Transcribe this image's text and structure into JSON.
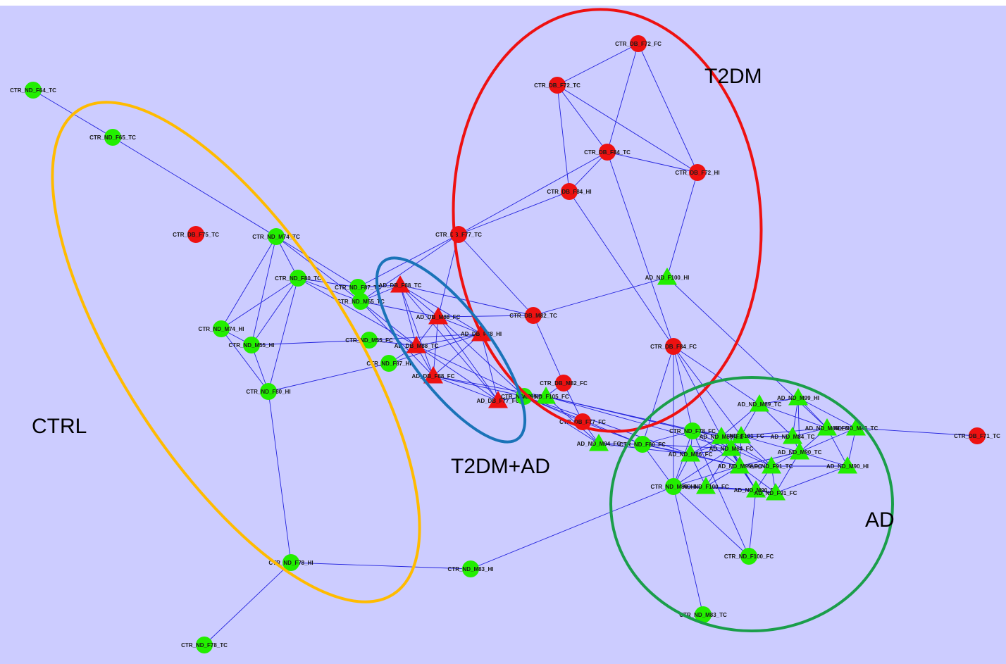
{
  "colors": {
    "background": "#ccccff",
    "edge": "#2222dd",
    "ctrl_node": "#22ee00",
    "t2dm_node": "#ee1111",
    "ctrl_group": "#ffbb00",
    "t2dm_group": "#ee1111",
    "mixed_group": "#1a73b8",
    "ad_group": "#1a9e4a"
  },
  "groups": [
    {
      "id": "ctrl",
      "label": "CTRL"
    },
    {
      "id": "t2dm",
      "label": "T2DM"
    },
    {
      "id": "mixed",
      "label": "T2DM+AD"
    },
    {
      "id": "ad",
      "label": "AD"
    }
  ],
  "nodes": [
    {
      "id": "CTR_ND_F64_TC",
      "label": "CTR_ND_F64_TC",
      "shape": "circle",
      "color": "green"
    },
    {
      "id": "CTR_ND_F65_TC",
      "label": "CTR_ND_F65_TC",
      "shape": "circle",
      "color": "green"
    },
    {
      "id": "CTR_DB_F75_TC",
      "label": "CTR_DB_F75_TC",
      "shape": "circle",
      "color": "red"
    },
    {
      "id": "CTR_ND_M74_TC",
      "label": "CTR_ND_M74_TC",
      "shape": "circle",
      "color": "green"
    },
    {
      "id": "CTR_ND_F80_TC",
      "label": "CTR_ND_F80_TC",
      "shape": "circle",
      "color": "green"
    },
    {
      "id": "CTR_ND_F87_",
      "label": "CTR_ND_F87_TC",
      "shape": "circle",
      "color": "green"
    },
    {
      "id": "CTR_ND_M55_1",
      "label": "CTR_ND_M55_TC",
      "shape": "circle",
      "color": "green"
    },
    {
      "id": "CTR_ND_M74_HI",
      "label": "CTR_ND_M74_HI",
      "shape": "circle",
      "color": "green"
    },
    {
      "id": "CTR_ND_M55_HI",
      "label": "CTR_ND_M55_HI",
      "shape": "circle",
      "color": "green"
    },
    {
      "id": "CTR_ND_M55_FC",
      "label": "CTR_ND_M55_FC",
      "shape": "circle",
      "color": "green"
    },
    {
      "id": "CTR_ND_F87_HI",
      "label": "CTR_ND_F87_HI",
      "shape": "circle",
      "color": "green"
    },
    {
      "id": "CTR_ND_F80_HI",
      "label": "CTR_ND_F80_HI",
      "shape": "circle",
      "color": "green"
    },
    {
      "id": "CTR_ND_F78_HI",
      "label": "CTR_ND_F78_HI",
      "shape": "circle",
      "color": "green"
    },
    {
      "id": "CTR_ND_M83_HI",
      "label": "CTR_ND_M83_HI",
      "shape": "circle",
      "color": "green"
    },
    {
      "id": "CTR_ND_F78_TC",
      "label": "CTR_ND_F78_TC",
      "shape": "circle",
      "color": "green"
    },
    {
      "id": "CTR_DB_F72_FC",
      "label": "CTR_DB_F72_FC",
      "shape": "circle",
      "color": "red"
    },
    {
      "id": "CTR_DB_F72_TC",
      "label": "CTR_DB_F72_TC",
      "shape": "circle",
      "color": "red"
    },
    {
      "id": "CTR_DB_F84_TC",
      "label": "CTR_DB_F84_TC",
      "shape": "circle",
      "color": "red"
    },
    {
      "id": "CTR_DB_F72_HI",
      "label": "CTR_DB_F72_HI",
      "shape": "circle",
      "color": "red"
    },
    {
      "id": "CTR_DB_F84_HI",
      "label": "CTR_DB_F84_HI",
      "shape": "circle",
      "color": "red"
    },
    {
      "id": "CTR_DB_F77_TC",
      "label": "CTR_DB_F77_TC",
      "shape": "circle",
      "color": "red"
    },
    {
      "id": "CTR_DB_M82_TC",
      "label": "CTR_DB_M82_TC",
      "shape": "circle",
      "color": "red"
    },
    {
      "id": "CTR_DB_F84_FC",
      "label": "CTR_DB_F84_FC",
      "shape": "circle",
      "color": "red"
    },
    {
      "id": "CTR_DB_M82_FC",
      "label": "CTR_DB_M82_FC",
      "shape": "circle",
      "color": "red"
    },
    {
      "id": "CTR_DB_F77_FC",
      "label": "CTR_DB_F77_FC",
      "shape": "circle",
      "color": "red"
    },
    {
      "id": "CTR_DB_F71_TC",
      "label": "CTR_DB_F71_TC",
      "shape": "circle",
      "color": "red"
    },
    {
      "id": "AD_ND_F100_HI",
      "label": "AD_ND_F100_HI",
      "shape": "triangle",
      "color": "green"
    },
    {
      "id": "AD_DB_F88_TC",
      "label": "AD_DB_F88_TC",
      "shape": "triangle",
      "color": "red"
    },
    {
      "id": "AD_DB_M88_FC",
      "label": "AD_DB_M88_FC",
      "shape": "triangle",
      "color": "red"
    },
    {
      "id": "AD_DB_F88_HI",
      "label": "AD_DB_F88_HI",
      "shape": "triangle",
      "color": "red"
    },
    {
      "id": "AD_DB_M88_TC",
      "label": "AD_DB_M88_TC",
      "shape": "triangle",
      "color": "red"
    },
    {
      "id": "AD_DB_F88_FC",
      "label": "AD_DB_F88_FC",
      "shape": "triangle",
      "color": "red"
    },
    {
      "id": "AD_DB_F77_FC",
      "label": "AD_DB_F77_FC",
      "shape": "triangle",
      "color": "red"
    },
    {
      "id": "CTR_ND_F89_FC",
      "label": "CTR_ND_F89_FC",
      "shape": "circle",
      "color": "green"
    },
    {
      "id": "AD_ND_F105_FC",
      "label": "AD_ND_F105_FC",
      "shape": "triangle",
      "color": "green"
    },
    {
      "id": "AD_ND_M94_FC",
      "label": "AD_ND_M94_FC",
      "shape": "triangle",
      "color": "green"
    },
    {
      "id": "CTR_ND_F80_FC",
      "label": "CTR_ND_F80_FC",
      "shape": "circle",
      "color": "green"
    },
    {
      "id": "CTR_ND_F78_FC",
      "label": "CTR_ND_F78_FC",
      "shape": "circle",
      "color": "green"
    },
    {
      "id": "AD_ND_M89_TC",
      "label": "AD_ND_M89_TC",
      "shape": "triangle",
      "color": "green"
    },
    {
      "id": "AD_ND_M99_HI",
      "label": "AD_ND_M99_HI",
      "shape": "triangle",
      "color": "green"
    },
    {
      "id": "AD_ND_M84_TC",
      "label": "AD_ND_M84_TC",
      "shape": "triangle",
      "color": "green"
    },
    {
      "id": "AD_ND_M83_FC",
      "label": "AD_ND_M83_FC",
      "shape": "triangle",
      "color": "green"
    },
    {
      "id": "AD_ND_M83_TC",
      "label": "AD_ND_M83_TC",
      "shape": "triangle",
      "color": "green"
    },
    {
      "id": "AD_ND_F101_FC",
      "label": "AD_ND_F101_FC",
      "shape": "triangle",
      "color": "green"
    },
    {
      "id": "AD_ND_M89_FC",
      "label": "AD_ND_M89_FC",
      "shape": "triangle",
      "color": "green"
    },
    {
      "id": "AD_ND_M86_FC",
      "label": "AD_ND_M86_FC",
      "shape": "triangle",
      "color": "green"
    },
    {
      "id": "AD_ND_M84_FC",
      "label": "AD_ND_M84_FC",
      "shape": "triangle",
      "color": "green"
    },
    {
      "id": "AD_ND_M90_TC",
      "label": "AD_ND_M90_TC",
      "shape": "triangle",
      "color": "green"
    },
    {
      "id": "AD_ND_M99_FC",
      "label": "AD_ND_M99_FC",
      "shape": "triangle",
      "color": "green"
    },
    {
      "id": "AD_ND_F91_TC",
      "label": "AD_ND_F91_TC",
      "shape": "triangle",
      "color": "green"
    },
    {
      "id": "AD_ND_M90_HI",
      "label": "AD_ND_M90_HI",
      "shape": "triangle",
      "color": "green"
    },
    {
      "id": "CTR_ND_M89_HI",
      "label": "CTR_ND_M89_HI",
      "shape": "circle",
      "color": "green"
    },
    {
      "id": "AD_ND_F100_FC",
      "label": "AD_ND_F100_FC",
      "shape": "triangle",
      "color": "green"
    },
    {
      "id": "AD_ND_M90_FC",
      "label": "AD_ND_M90_FC",
      "shape": "triangle",
      "color": "green"
    },
    {
      "id": "AD_ND_F91_FC",
      "label": "AD_ND_F91_FC",
      "shape": "triangle",
      "color": "green"
    },
    {
      "id": "CTR_ND_F100_FC",
      "label": "CTR_ND_F100_FC",
      "shape": "circle",
      "color": "green"
    },
    {
      "id": "CTR_ND_M83_TC",
      "label": "CTR_ND_M83_TC",
      "shape": "circle",
      "color": "green"
    }
  ],
  "edges": [
    [
      "CTR_ND_F64_TC",
      "CTR_ND_F65_TC"
    ],
    [
      "CTR_ND_F65_TC",
      "CTR_ND_M74_TC"
    ],
    [
      "CTR_ND_M74_TC",
      "CTR_ND_F80_TC"
    ],
    [
      "CTR_ND_M74_TC",
      "CTR_ND_M74_HI"
    ],
    [
      "CTR_ND_M74_TC",
      "CTR_ND_M55_1"
    ],
    [
      "CTR_ND_M74_TC",
      "CTR_ND_F87_"
    ],
    [
      "CTR_ND_M74_TC",
      "CTR_ND_M55_HI"
    ],
    [
      "CTR_ND_F80_TC",
      "CTR_ND_M74_HI"
    ],
    [
      "CTR_ND_F80_TC",
      "CTR_ND_F80_HI"
    ],
    [
      "CTR_ND_F80_TC",
      "CTR_ND_F87_"
    ],
    [
      "CTR_ND_F80_TC",
      "CTR_ND_M55_HI"
    ],
    [
      "CTR_ND_F80_TC",
      "CTR_ND_M55_1"
    ],
    [
      "CTR_ND_F80_TC",
      "AD_DB_M88_TC"
    ],
    [
      "CTR_ND_M74_HI",
      "CTR_ND_M55_HI"
    ],
    [
      "CTR_ND_M74_HI",
      "CTR_ND_F80_HI"
    ],
    [
      "CTR_ND_M55_HI",
      "CTR_ND_F80_HI"
    ],
    [
      "CTR_ND_M55_HI",
      "CTR_ND_M55_FC"
    ],
    [
      "CTR_ND_F80_HI",
      "CTR_ND_F87_HI"
    ],
    [
      "CTR_ND_F80_HI",
      "CTR_ND_F78_HI"
    ],
    [
      "CTR_ND_F78_HI",
      "CTR_ND_M83_HI"
    ],
    [
      "CTR_ND_F78_HI",
      "CTR_ND_F78_TC"
    ],
    [
      "CTR_ND_M83_HI",
      "CTR_ND_M89_HI"
    ],
    [
      "CTR_ND_F87_",
      "CTR_ND_M55_1"
    ],
    [
      "CTR_ND_F87_",
      "AD_DB_F88_TC"
    ],
    [
      "CTR_ND_F87_",
      "CTR_DB_F77_TC"
    ],
    [
      "CTR_ND_M55_1",
      "AD_DB_F88_TC"
    ],
    [
      "CTR_ND_M55_1",
      "CTR_DB_F77_TC"
    ],
    [
      "CTR_ND_M55_1",
      "AD_DB_M88_FC"
    ],
    [
      "CTR_ND_M55_1",
      "AD_DB_M88_TC"
    ],
    [
      "CTR_ND_M55_1",
      "AD_DB_F88_FC"
    ],
    [
      "CTR_ND_M55_FC",
      "AD_DB_F88_HI"
    ],
    [
      "CTR_ND_M55_FC",
      "AD_DB_M88_TC"
    ],
    [
      "CTR_ND_F87_HI",
      "AD_DB_F88_HI"
    ],
    [
      "CTR_ND_F87_HI",
      "AD_DB_M88_TC"
    ],
    [
      "CTR_DB_F72_FC",
      "CTR_DB_F72_TC"
    ],
    [
      "CTR_DB_F72_FC",
      "CTR_DB_F84_TC"
    ],
    [
      "CTR_DB_F72_FC",
      "CTR_DB_F72_HI"
    ],
    [
      "CTR_DB_F72_TC",
      "CTR_DB_F84_TC"
    ],
    [
      "CTR_DB_F72_TC",
      "CTR_DB_F84_HI"
    ],
    [
      "CTR_DB_F72_TC",
      "CTR_DB_F72_HI"
    ],
    [
      "CTR_DB_F84_TC",
      "CTR_DB_F72_HI"
    ],
    [
      "CTR_DB_F84_TC",
      "CTR_DB_F84_HI"
    ],
    [
      "CTR_DB_F84_TC",
      "CTR_DB_F77_TC"
    ],
    [
      "CTR_DB_F84_TC",
      "CTR_DB_F84_FC"
    ],
    [
      "CTR_DB_F72_HI",
      "AD_ND_F100_HI"
    ],
    [
      "CTR_DB_F84_HI",
      "CTR_DB_F77_TC"
    ],
    [
      "CTR_DB_F84_HI",
      "CTR_DB_F84_FC"
    ],
    [
      "CTR_DB_F77_TC",
      "CTR_DB_M82_TC"
    ],
    [
      "CTR_DB_F77_TC",
      "AD_DB_M88_FC"
    ],
    [
      "CTR_DB_M82_TC",
      "AD_ND_F100_HI"
    ],
    [
      "CTR_DB_M82_TC",
      "CTR_DB_M82_FC"
    ],
    [
      "CTR_DB_M82_TC",
      "AD_DB_M88_FC"
    ],
    [
      "CTR_DB_M82_TC",
      "AD_DB_F88_TC"
    ],
    [
      "AD_ND_F100_HI",
      "AD_ND_M83_FC"
    ],
    [
      "CTR_DB_F84_FC",
      "CTR_ND_F78_FC"
    ],
    [
      "CTR_DB_F84_FC",
      "CTR_ND_M89_HI"
    ],
    [
      "CTR_DB_F84_FC",
      "AD_ND_M89_FC"
    ],
    [
      "CTR_DB_F84_FC",
      "AD_ND_M89_TC"
    ],
    [
      "CTR_DB_F84_FC",
      "AD_ND_F101_FC"
    ],
    [
      "CTR_DB_M82_FC",
      "CTR_DB_F77_FC"
    ],
    [
      "CTR_DB_M82_FC",
      "AD_ND_F105_FC"
    ],
    [
      "CTR_DB_F77_FC",
      "CTR_ND_F89_FC"
    ],
    [
      "CTR_DB_F77_FC",
      "AD_ND_M94_FC"
    ],
    [
      "CTR_DB_F77_FC",
      "CTR_ND_F80_FC"
    ],
    [
      "AD_DB_F88_TC",
      "AD_DB_M88_FC"
    ],
    [
      "AD_DB_F88_TC",
      "AD_DB_M88_TC"
    ],
    [
      "AD_DB_F88_TC",
      "AD_DB_F88_FC"
    ],
    [
      "AD_DB_F88_TC",
      "AD_DB_F77_FC"
    ],
    [
      "AD_DB_F88_TC",
      "AD_DB_F88_HI"
    ],
    [
      "AD_DB_M88_FC",
      "AD_DB_F88_HI"
    ],
    [
      "AD_DB_M88_FC",
      "AD_DB_M88_TC"
    ],
    [
      "AD_DB_M88_FC",
      "AD_DB_F88_FC"
    ],
    [
      "AD_DB_M88_FC",
      "AD_DB_F77_FC"
    ],
    [
      "AD_DB_M88_FC",
      "CTR_ND_F89_FC"
    ],
    [
      "AD_DB_F88_HI",
      "AD_DB_M88_TC"
    ],
    [
      "AD_DB_F88_HI",
      "AD_DB_F88_FC"
    ],
    [
      "AD_DB_F88_HI",
      "AD_DB_F77_FC"
    ],
    [
      "AD_DB_M88_TC",
      "AD_DB_F88_FC"
    ],
    [
      "AD_DB_M88_TC",
      "AD_DB_F77_FC"
    ],
    [
      "AD_DB_M88_TC",
      "CTR_ND_F89_FC"
    ],
    [
      "AD_DB_F88_FC",
      "AD_DB_F77_FC"
    ],
    [
      "AD_DB_F88_FC",
      "CTR_ND_F89_FC"
    ],
    [
      "AD_DB_F88_FC",
      "AD_ND_F105_FC"
    ],
    [
      "AD_DB_F77_FC",
      "CTR_ND_F89_FC"
    ],
    [
      "CTR_ND_F89_FC",
      "AD_ND_F105_FC"
    ],
    [
      "CTR_ND_F89_FC",
      "AD_ND_M94_FC"
    ],
    [
      "CTR_ND_F89_FC",
      "CTR_ND_F80_FC"
    ],
    [
      "CTR_ND_F89_FC",
      "AD_ND_M86_FC"
    ],
    [
      "AD_ND_F105_FC",
      "AD_ND_M94_FC"
    ],
    [
      "AD_ND_F105_FC",
      "CTR_ND_F78_FC"
    ],
    [
      "AD_ND_F105_FC",
      "AD_ND_M89_FC"
    ],
    [
      "AD_ND_F105_FC",
      "AD_ND_M84_FC"
    ],
    [
      "AD_ND_M94_FC",
      "CTR_ND_F80_FC"
    ],
    [
      "AD_ND_M94_FC",
      "AD_ND_M86_FC"
    ],
    [
      "CTR_ND_F80_FC",
      "CTR_ND_F78_FC"
    ],
    [
      "CTR_ND_F80_FC",
      "AD_ND_M86_FC"
    ],
    [
      "CTR_ND_F80_FC",
      "AD_ND_M84_FC"
    ],
    [
      "CTR_ND_F80_FC",
      "AD_ND_M99_FC"
    ],
    [
      "CTR_ND_F80_FC",
      "CTR_ND_M89_HI"
    ],
    [
      "CTR_ND_F78_FC",
      "AD_ND_M89_FC"
    ],
    [
      "CTR_ND_F78_FC",
      "AD_ND_F101_FC"
    ],
    [
      "CTR_ND_F78_FC",
      "AD_ND_M86_FC"
    ],
    [
      "CTR_ND_F78_FC",
      "AD_ND_M84_FC"
    ],
    [
      "CTR_ND_F78_FC",
      "AD_ND_M99_FC"
    ],
    [
      "CTR_ND_F78_FC",
      "CTR_ND_M89_HI"
    ],
    [
      "AD_ND_M89_TC",
      "AD_ND_M99_HI"
    ],
    [
      "AD_ND_M89_TC",
      "AD_ND_M84_TC"
    ],
    [
      "AD_ND_M89_TC",
      "AD_ND_F101_FC"
    ],
    [
      "AD_ND_M89_TC",
      "AD_ND_M89_FC"
    ],
    [
      "AD_ND_M89_TC",
      "AD_ND_M83_FC"
    ],
    [
      "AD_ND_M99_HI",
      "AD_ND_M84_TC"
    ],
    [
      "AD_ND_M99_HI",
      "AD_ND_M83_FC"
    ],
    [
      "AD_ND_M99_HI",
      "AD_ND_M83_TC"
    ],
    [
      "AD_ND_M99_HI",
      "AD_ND_M90_TC"
    ],
    [
      "AD_ND_M84_TC",
      "AD_ND_M83_FC"
    ],
    [
      "AD_ND_M84_TC",
      "AD_ND_F101_FC"
    ],
    [
      "AD_ND_M84_TC",
      "AD_ND_M90_TC"
    ],
    [
      "AD_ND_M84_TC",
      "AD_ND_M89_FC"
    ],
    [
      "AD_ND_M83_FC",
      "AD_ND_M83_TC"
    ],
    [
      "AD_ND_M83_FC",
      "AD_ND_M90_HI"
    ],
    [
      "AD_ND_M83_FC",
      "AD_ND_M90_TC"
    ],
    [
      "AD_ND_M83_FC",
      "AD_ND_F101_FC"
    ],
    [
      "AD_ND_M83_TC",
      "AD_ND_M90_HI"
    ],
    [
      "AD_ND_M83_TC",
      "AD_ND_M90_TC"
    ],
    [
      "AD_ND_F101_FC",
      "AD_ND_M89_FC"
    ],
    [
      "AD_ND_F101_FC",
      "AD_ND_M86_FC"
    ],
    [
      "AD_ND_F101_FC",
      "AD_ND_M84_FC"
    ],
    [
      "AD_ND_F101_FC",
      "AD_ND_F91_TC"
    ],
    [
      "AD_ND_F101_FC",
      "AD_ND_M90_TC"
    ],
    [
      "AD_ND_F101_FC",
      "AD_ND_M99_FC"
    ],
    [
      "AD_ND_M89_FC",
      "AD_ND_M86_FC"
    ],
    [
      "AD_ND_M89_FC",
      "AD_ND_M84_FC"
    ],
    [
      "AD_ND_M89_FC",
      "AD_ND_F91_TC"
    ],
    [
      "AD_ND_M89_FC",
      "AD_ND_M99_FC"
    ],
    [
      "AD_ND_M89_FC",
      "AD_ND_M90_FC"
    ],
    [
      "AD_ND_M86_FC",
      "AD_ND_M84_FC"
    ],
    [
      "AD_ND_M86_FC",
      "AD_ND_M99_FC"
    ],
    [
      "AD_ND_M86_FC",
      "CTR_ND_M89_HI"
    ],
    [
      "AD_ND_M86_FC",
      "AD_ND_F100_FC"
    ],
    [
      "AD_ND_M84_FC",
      "AD_ND_M99_FC"
    ],
    [
      "AD_ND_M84_FC",
      "AD_ND_F91_TC"
    ],
    [
      "AD_ND_M84_FC",
      "CTR_ND_M89_HI"
    ],
    [
      "AD_ND_M84_FC",
      "AD_ND_F100_FC"
    ],
    [
      "AD_ND_M84_FC",
      "AD_ND_M90_FC"
    ],
    [
      "AD_ND_M90_TC",
      "AD_ND_F91_TC"
    ],
    [
      "AD_ND_M90_TC",
      "AD_ND_M90_HI"
    ],
    [
      "AD_ND_M90_TC",
      "AD_ND_F91_FC"
    ],
    [
      "AD_ND_M90_TC",
      "AD_ND_M99_FC"
    ],
    [
      "AD_ND_M99_FC",
      "AD_ND_F91_TC"
    ],
    [
      "AD_ND_M99_FC",
      "CTR_ND_M89_HI"
    ],
    [
      "AD_ND_M99_FC",
      "AD_ND_F100_FC"
    ],
    [
      "AD_ND_M99_FC",
      "AD_ND_M90_FC"
    ],
    [
      "AD_ND_M99_FC",
      "AD_ND_F91_FC"
    ],
    [
      "AD_ND_F91_TC",
      "AD_ND_M90_FC"
    ],
    [
      "AD_ND_F91_TC",
      "AD_ND_F91_FC"
    ],
    [
      "AD_ND_F91_TC",
      "AD_ND_M90_HI"
    ],
    [
      "AD_ND_M90_HI",
      "AD_ND_F91_FC"
    ],
    [
      "CTR_ND_M89_HI",
      "AD_ND_F100_FC"
    ],
    [
      "CTR_ND_M89_HI",
      "AD_ND_M90_FC"
    ],
    [
      "CTR_ND_M89_HI",
      "CTR_ND_F100_FC"
    ],
    [
      "CTR_ND_M89_HI",
      "CTR_ND_M83_TC"
    ],
    [
      "AD_ND_F100_FC",
      "AD_ND_M90_FC"
    ],
    [
      "AD_ND_F100_FC",
      "AD_ND_F91_FC"
    ],
    [
      "AD_ND_M90_FC",
      "AD_ND_F91_FC"
    ],
    [
      "AD_ND_M90_FC",
      "CTR_ND_F100_FC"
    ],
    [
      "AD_ND_M83_TC",
      "CTR_DB_F71_TC"
    ],
    [
      "CTR_ND_F78_FC",
      "CTR_ND_F100_FC"
    ],
    [
      "CTR_DB_F84_FC",
      "CTR_ND_F80_FC"
    ]
  ]
}
